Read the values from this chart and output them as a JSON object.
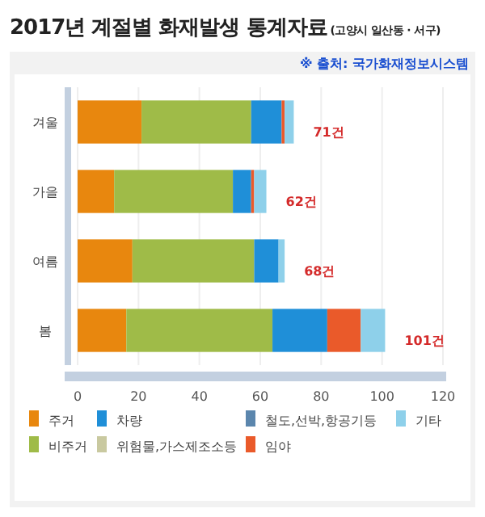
{
  "chart_data": {
    "type": "bar",
    "orientation": "horizontal",
    "stacked": true,
    "title": "2017년 계절별 화재발생 통계자료",
    "subtitle": "(고양시 일산동 · 서구)",
    "annotations": [
      "※ 출처: 국가화재정보시스템"
    ],
    "categories": [
      "겨울",
      "가을",
      "여름",
      "봄"
    ],
    "series": [
      {
        "name": "주거",
        "color": "#e8870e",
        "values": [
          21,
          12,
          18,
          16
        ]
      },
      {
        "name": "비주거",
        "color": "#9fbb48",
        "values": [
          36,
          39,
          40,
          48
        ]
      },
      {
        "name": "차량",
        "color": "#1f8fd8",
        "values": [
          10,
          6,
          8,
          18
        ]
      },
      {
        "name": "위험물,가스제조소등",
        "color": "#c9c9a0",
        "values": [
          0,
          0,
          0,
          0
        ]
      },
      {
        "name": "철도,선박,항공기등",
        "color": "#5b86ad",
        "values": [
          0,
          0,
          0,
          0
        ]
      },
      {
        "name": "임야",
        "color": "#ea5a2a",
        "values": [
          1,
          1,
          0,
          11
        ]
      },
      {
        "name": "기타",
        "color": "#8ed0ea",
        "values": [
          3,
          4,
          2,
          8
        ]
      }
    ],
    "totals": [
      "71건",
      "62건",
      "68건",
      "101건"
    ],
    "xlim": [
      0,
      120
    ],
    "xticks": [
      0,
      20,
      40,
      60,
      80,
      100,
      120
    ],
    "grid": "x",
    "legend": "bottom"
  }
}
